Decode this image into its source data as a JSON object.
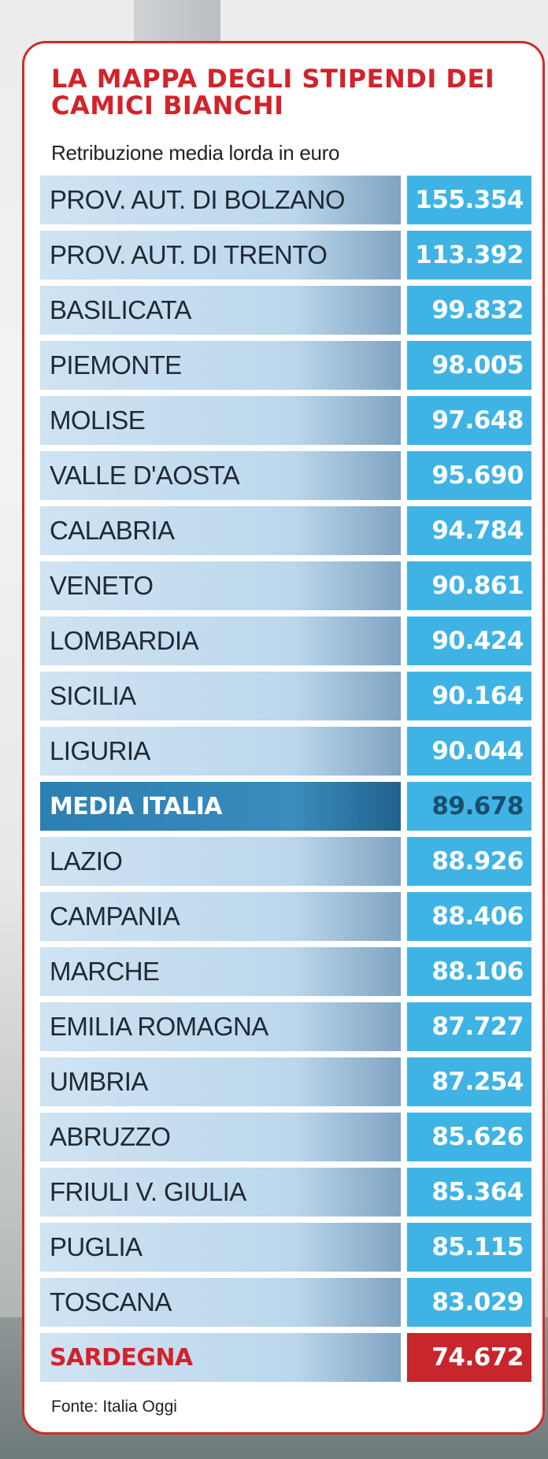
{
  "title": "LA MAPPA DEGLI STIPENDI DEI CAMICI BIANCHI",
  "subtitle": "Retribuzione media lorda in euro",
  "source": "Fonte: Italia Oggi",
  "colors": {
    "title_red": "#d2232a",
    "value_blue": "#3fb4e4",
    "highlight_blue": "#2c7fb2",
    "worst_red": "#c8262c",
    "row_light_blue": "#cfe3f3"
  },
  "chart_data": {
    "type": "table",
    "title": "LA MAPPA DEGLI STIPENDI DEI CAMICI BIANCHI",
    "subtitle": "Retribuzione media lorda in euro",
    "categories": [
      "PROV. AUT. DI BOLZANO",
      "PROV. AUT. DI TRENTO",
      "BASILICATA",
      "PIEMONTE",
      "MOLISE",
      "VALLE D'AOSTA",
      "CALABRIA",
      "VENETO",
      "LOMBARDIA",
      "SICILIA",
      "LIGURIA",
      "MEDIA ITALIA",
      "LAZIO",
      "CAMPANIA",
      "MARCHE",
      "EMILIA ROMAGNA",
      "UMBRIA",
      "ABRUZZO",
      "FRIULI V. GIULIA",
      "PUGLIA",
      "TOSCANA",
      "SARDEGNA"
    ],
    "values": [
      155354,
      113392,
      99832,
      98005,
      97648,
      95690,
      94784,
      90861,
      90424,
      90164,
      90044,
      89678,
      88926,
      88406,
      88106,
      87727,
      87254,
      85626,
      85364,
      85115,
      83029,
      74672
    ],
    "value_labels": [
      "155.354",
      "113.392",
      "99.832",
      "98.005",
      "97.648",
      "95.690",
      "94.784",
      "90.861",
      "90.424",
      "90.164",
      "90.044",
      "89.678",
      "88.926",
      "88.406",
      "88.106",
      "87.727",
      "87.254",
      "85.626",
      "85.364",
      "85.115",
      "83.029",
      "74.672"
    ],
    "highlight_row": "MEDIA ITALIA",
    "worst_row": "SARDEGNA"
  }
}
